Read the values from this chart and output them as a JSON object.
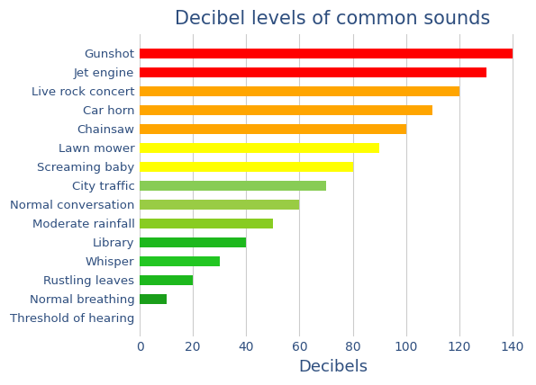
{
  "title": "Decibel levels of common sounds",
  "xlabel": "Decibels",
  "categories": [
    "Threshold of hearing",
    "Normal breathing",
    "Rustling leaves",
    "Whisper",
    "Library",
    "Moderate rainfall",
    "Normal conversation",
    "City traffic",
    "Screaming baby",
    "Lawn mower",
    "Chainsaw",
    "Car horn",
    "Live rock concert",
    "Jet engine",
    "Gunshot"
  ],
  "values": [
    0,
    10,
    20,
    30,
    40,
    50,
    60,
    70,
    80,
    90,
    100,
    110,
    120,
    130,
    140
  ],
  "colors": [
    "#d3d3d3",
    "#1a9e1a",
    "#1db81d",
    "#22c622",
    "#1db81d",
    "#88cc22",
    "#99cc44",
    "#88cc55",
    "#ffff00",
    "#ffff00",
    "#ffa500",
    "#ffa500",
    "#ffa500",
    "#ff0000",
    "#ff0000"
  ],
  "xlim": [
    0,
    145
  ],
  "xticks": [
    0,
    20,
    40,
    60,
    80,
    100,
    120,
    140
  ],
  "title_fontsize": 15,
  "label_fontsize": 13,
  "xtick_fontsize": 10,
  "ytick_fontsize": 9.5,
  "title_color": "#2e4e7e",
  "label_color": "#2e4e7e",
  "tick_color": "#2e4e7e",
  "ytick_color": "#2e4e7e",
  "grid_color": "#cccccc",
  "background_color": "#ffffff",
  "bar_height": 0.55
}
